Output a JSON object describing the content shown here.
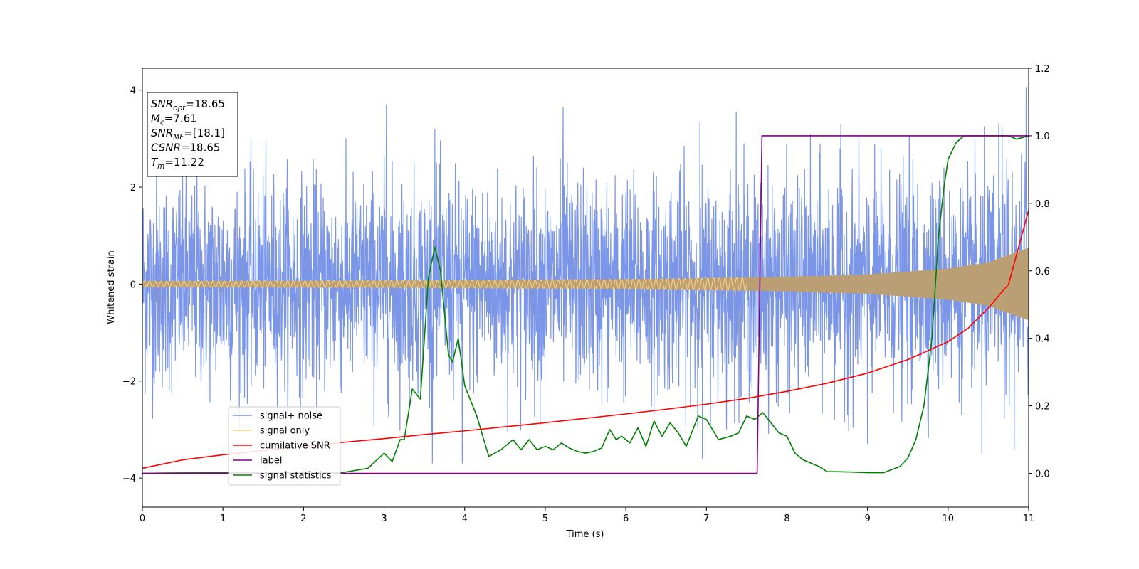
{
  "chart_data": {
    "type": "line",
    "xlabel": "Time (s)",
    "ylabel": "Whitened strain",
    "xlim": [
      0,
      11
    ],
    "ylim": [
      -4.6,
      4.45
    ],
    "y2lim": [
      -0.1,
      1.2
    ],
    "grid": false,
    "x_ticks": [
      "0",
      "1",
      "2",
      "3",
      "4",
      "5",
      "6",
      "7",
      "8",
      "9",
      "10",
      "11"
    ],
    "y_ticks": [
      "−4",
      "−2",
      "0",
      "2",
      "4"
    ],
    "y2_ticks": [
      "0.0",
      "0.2",
      "0.4",
      "0.6",
      "0.8",
      "1.0",
      "1.2"
    ],
    "info_box": {
      "lines": [
        {
          "sym": "SNR",
          "sub": "opt",
          "val": "=18.65"
        },
        {
          "sym": "M",
          "sub": "c",
          "val": "=7.61"
        },
        {
          "sym": "SNR",
          "sub": "MF",
          "val": "=[18.1]"
        },
        {
          "sym": "CSNR",
          "sub": "",
          "val": "=18.65"
        },
        {
          "sym": "T",
          "sub": "m",
          "val": "=11.22"
        }
      ]
    },
    "legend": {
      "placement": "lower-left",
      "entries": [
        {
          "label": "signal+ noise",
          "color": "#7b96e8"
        },
        {
          "label": "signal only",
          "color": "#fdd27e"
        },
        {
          "label": "cumilative SNR",
          "color": "#ff0000"
        },
        {
          "label": "label",
          "color": "#800080"
        },
        {
          "label": "signal statistics",
          "color": "#008000"
        }
      ]
    },
    "series": [
      {
        "name": "signal+ noise",
        "axis": "left",
        "color": "#7b96e8",
        "noise_amplitude": 1.2,
        "peaks": [
          [
            3.03,
            3.7
          ],
          [
            3.63,
            3.2
          ],
          [
            5.22,
            3.65
          ],
          [
            6.92,
            3.35
          ],
          [
            7.37,
            3.55
          ],
          [
            8.67,
            3.3
          ],
          [
            10.67,
            3.25
          ],
          [
            10.97,
            4.05
          ],
          [
            3.6,
            -3.7
          ],
          [
            3.97,
            -3.7
          ],
          [
            6.95,
            -3.6
          ],
          [
            10.42,
            -3.5
          ],
          [
            9.0,
            -3.3
          ]
        ]
      },
      {
        "name": "signal only",
        "axis": "left",
        "color": "#fdd27e",
        "envelope": {
          "t": [
            0,
            2,
            4,
            6,
            8,
            9,
            10,
            10.5,
            11
          ],
          "amp": [
            0.06,
            0.07,
            0.08,
            0.1,
            0.15,
            0.2,
            0.32,
            0.45,
            0.75
          ]
        }
      },
      {
        "name": "cumilative SNR",
        "axis": "right",
        "color": "#ff0000",
        "x": [
          0,
          0.5,
          1,
          1.5,
          2,
          2.5,
          3,
          3.5,
          4,
          4.5,
          5,
          5.5,
          6,
          6.5,
          7,
          7.5,
          8,
          8.5,
          9,
          9.5,
          10,
          10.25,
          10.5,
          10.75,
          11
        ],
        "y": [
          0.015,
          0.04,
          0.055,
          0.068,
          0.08,
          0.092,
          0.103,
          0.115,
          0.126,
          0.138,
          0.15,
          0.163,
          0.176,
          0.19,
          0.205,
          0.222,
          0.243,
          0.267,
          0.297,
          0.337,
          0.39,
          0.43,
          0.49,
          0.56,
          0.78
        ]
      },
      {
        "name": "label",
        "axis": "right",
        "color": "#800080",
        "x": [
          0,
          7.63,
          7.69,
          11
        ],
        "y": [
          0,
          0,
          1,
          1
        ]
      },
      {
        "name": "signal statistics",
        "axis": "right",
        "color": "#008000",
        "x": [
          0,
          0.3,
          2.5,
          2.8,
          3.0,
          3.1,
          3.2,
          3.25,
          3.35,
          3.45,
          3.5,
          3.55,
          3.63,
          3.7,
          3.8,
          3.85,
          3.92,
          4.0,
          4.15,
          4.3,
          4.45,
          4.6,
          4.7,
          4.8,
          4.9,
          5.0,
          5.1,
          5.2,
          5.3,
          5.4,
          5.5,
          5.6,
          5.7,
          5.8,
          5.88,
          5.95,
          6.05,
          6.15,
          6.25,
          6.35,
          6.45,
          6.55,
          6.65,
          6.75,
          6.9,
          7.0,
          7.15,
          7.3,
          7.4,
          7.5,
          7.6,
          7.7,
          7.8,
          7.9,
          8.0,
          8.1,
          8.2,
          8.3,
          8.4,
          8.5,
          8.6,
          8.8,
          9.0,
          9.2,
          9.4,
          9.5,
          9.6,
          9.7,
          9.8,
          9.88,
          9.95,
          10.0,
          10.1,
          10.15,
          10.2,
          10.4,
          10.6,
          10.75,
          10.85,
          11.0
        ],
        "y": [
          0,
          0.001,
          0.003,
          0.015,
          0.06,
          0.035,
          0.1,
          0.1,
          0.25,
          0.22,
          0.4,
          0.58,
          0.67,
          0.6,
          0.35,
          0.33,
          0.4,
          0.26,
          0.17,
          0.05,
          0.07,
          0.1,
          0.07,
          0.1,
          0.07,
          0.08,
          0.07,
          0.09,
          0.075,
          0.065,
          0.06,
          0.065,
          0.075,
          0.13,
          0.1,
          0.11,
          0.09,
          0.135,
          0.08,
          0.155,
          0.11,
          0.15,
          0.12,
          0.08,
          0.17,
          0.16,
          0.1,
          0.11,
          0.12,
          0.17,
          0.16,
          0.18,
          0.15,
          0.12,
          0.11,
          0.06,
          0.04,
          0.03,
          0.02,
          0.005,
          0.005,
          0.004,
          0.002,
          0.002,
          0.02,
          0.045,
          0.1,
          0.2,
          0.4,
          0.7,
          0.85,
          0.93,
          0.98,
          0.99,
          1.0,
          1.0,
          1.0,
          1.0,
          0.99,
          1.0
        ]
      }
    ]
  }
}
